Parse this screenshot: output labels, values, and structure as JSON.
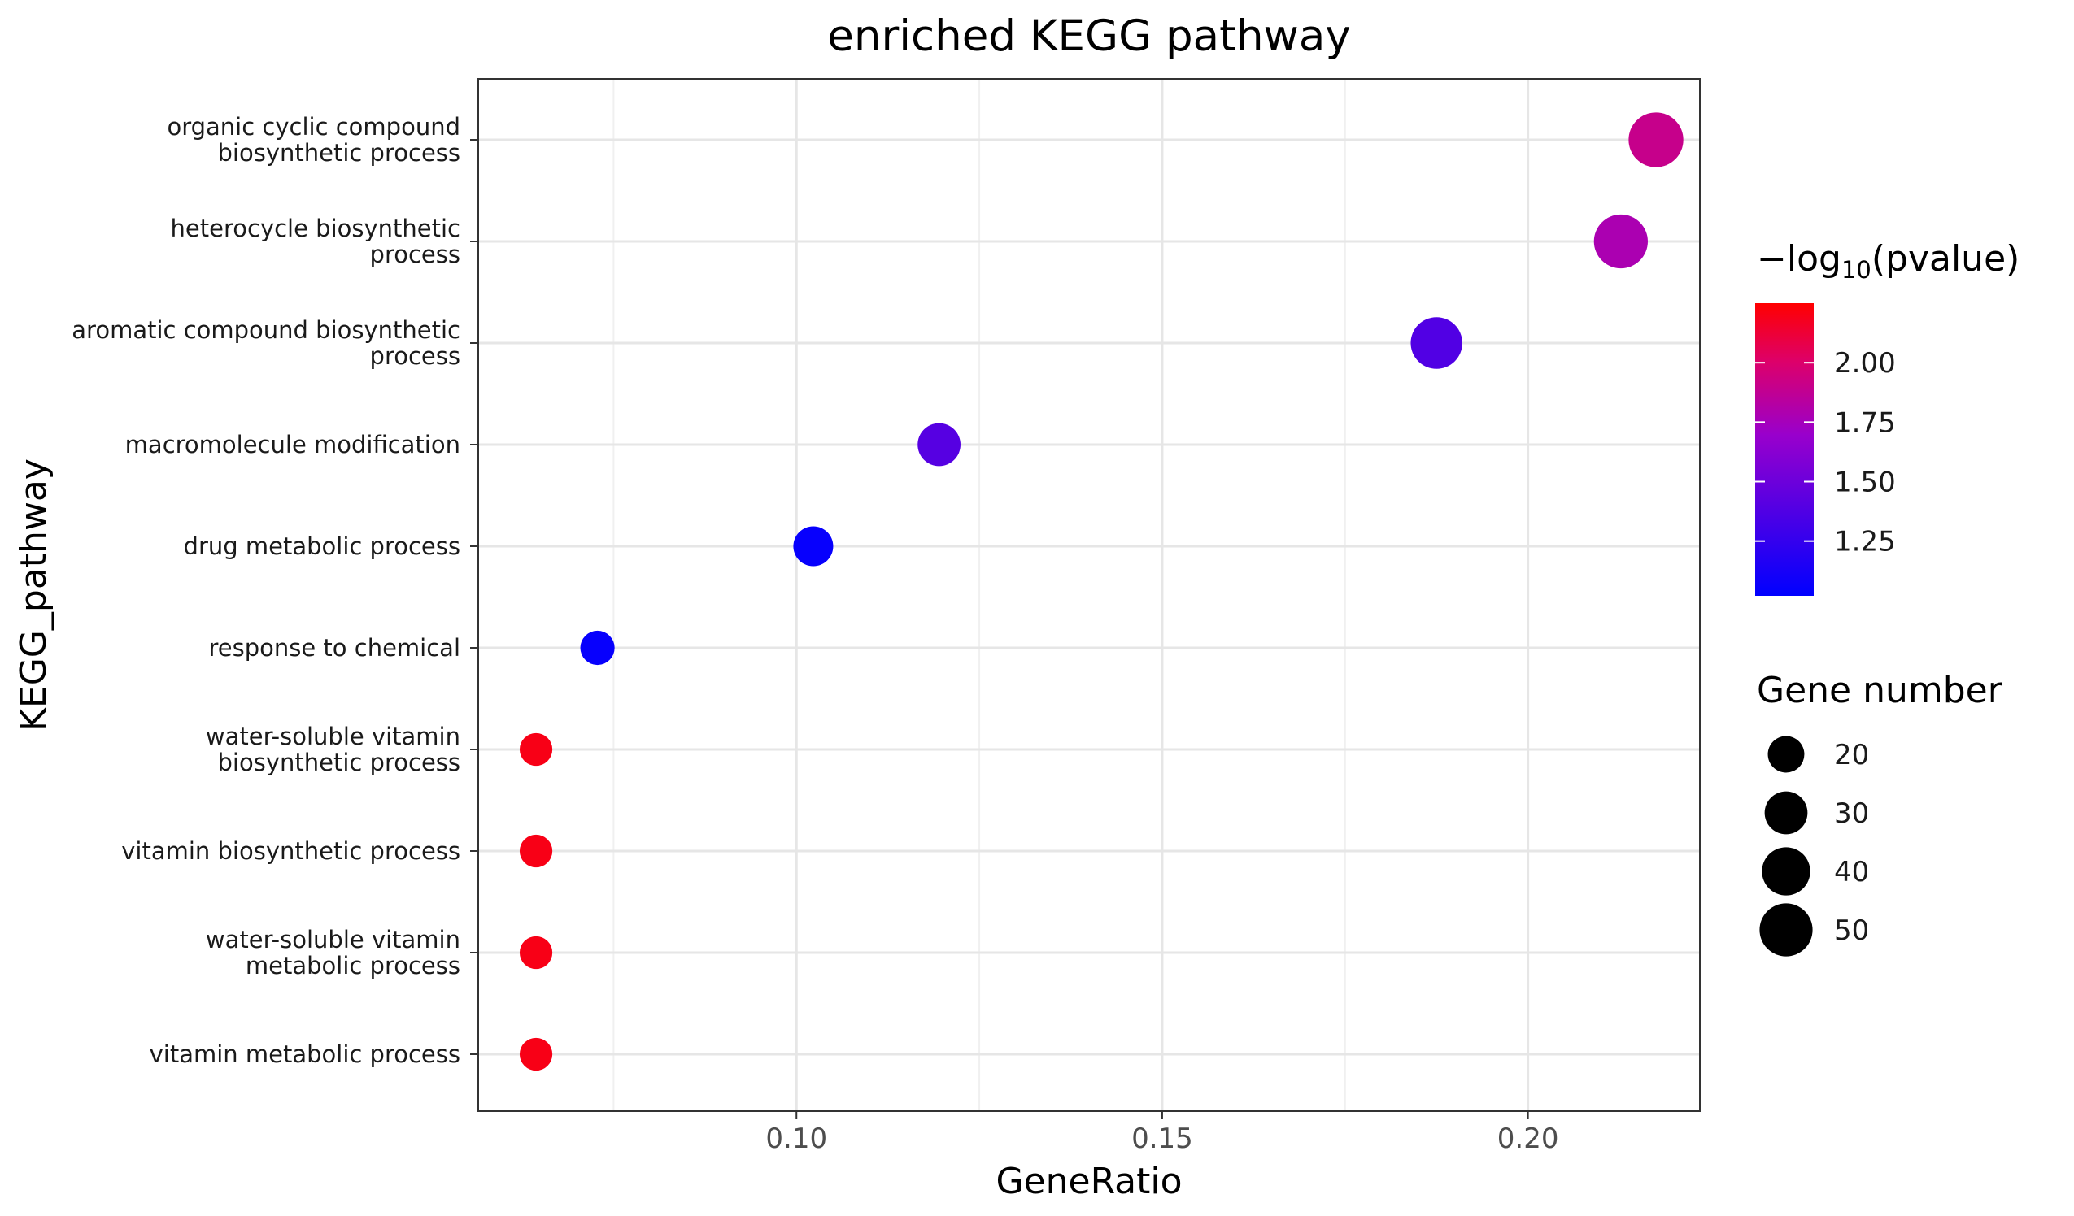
{
  "chart_data": {
    "type": "scatter",
    "title": "enriched KEGG pathway",
    "xlabel": "GeneRatio",
    "ylabel": "KEGG_pathway",
    "xlim": [
      0.0565,
      0.2235
    ],
    "x_ticks": [
      "0.10",
      "0.15",
      "0.20"
    ],
    "x_tick_values": [
      0.1,
      0.15,
      0.2
    ],
    "grid": true,
    "categories": [
      [
        "organic cyclic compound",
        "biosynthetic process"
      ],
      [
        "heterocycle biosynthetic",
        "process"
      ],
      [
        "aromatic compound biosynthetic",
        "process"
      ],
      [
        "macromolecule modification"
      ],
      [
        "drug metabolic process"
      ],
      [
        "response to chemical"
      ],
      [
        "water-soluble vitamin",
        "biosynthetic process"
      ],
      [
        "vitamin biosynthetic process"
      ],
      [
        "water-soluble vitamin",
        "metabolic process"
      ],
      [
        "vitamin metabolic process"
      ]
    ],
    "points": [
      {
        "x": 0.2175,
        "count": 54,
        "neglog10p": 1.9
      },
      {
        "x": 0.2127,
        "count": 52,
        "neglog10p": 1.78
      },
      {
        "x": 0.1875,
        "count": 47,
        "neglog10p": 1.38
      },
      {
        "x": 0.1195,
        "count": 30,
        "neglog10p": 1.4
      },
      {
        "x": 0.1023,
        "count": 25,
        "neglog10p": 1.05
      },
      {
        "x": 0.0728,
        "count": 17,
        "neglog10p": 1.05
      },
      {
        "x": 0.0644,
        "count": 15,
        "neglog10p": 2.2
      },
      {
        "x": 0.0644,
        "count": 15,
        "neglog10p": 2.2
      },
      {
        "x": 0.0644,
        "count": 15,
        "neglog10p": 2.2
      },
      {
        "x": 0.0644,
        "count": 15,
        "neglog10p": 2.2
      }
    ],
    "color_legend": {
      "title_prefix": "−log",
      "title_sub": "10",
      "title_suffix": "(pvalue)",
      "range": [
        1.02,
        2.25
      ],
      "ticks": [
        "2.00",
        "1.75",
        "1.50",
        "1.25"
      ],
      "tick_values": [
        2.0,
        1.75,
        1.5,
        1.25
      ],
      "low_color": "#0000ff",
      "high_color": "#ff0000"
    },
    "size_legend": {
      "title": "Gene number",
      "labels": [
        "20",
        "30",
        "40",
        "50"
      ],
      "values": [
        20,
        30,
        40,
        50
      ],
      "placement": "right"
    }
  }
}
